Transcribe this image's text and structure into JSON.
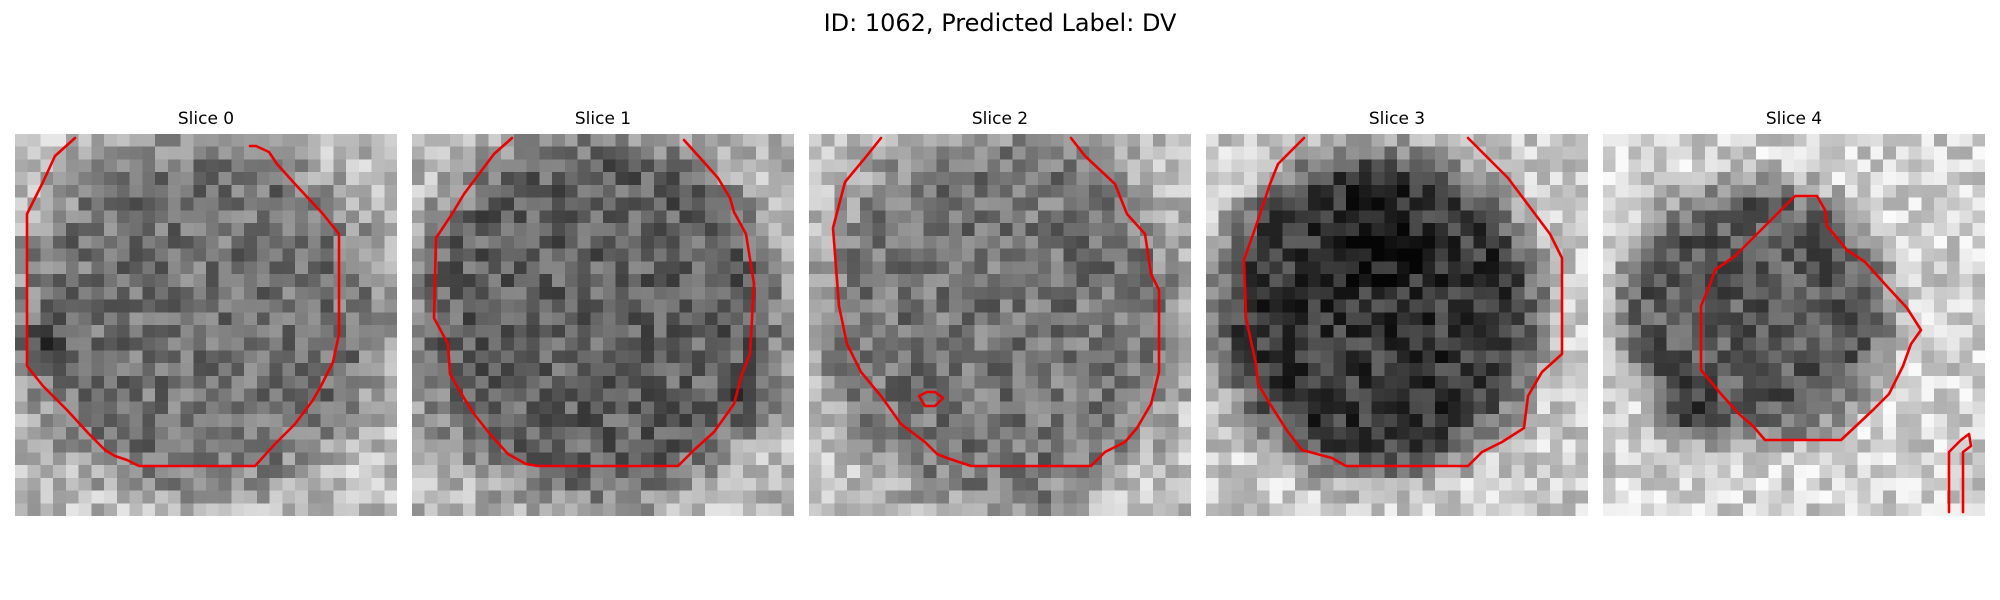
{
  "figure": {
    "title": "ID: 1062, Predicted Label: DV",
    "contour_color": "#ee0000",
    "colormap": "gray",
    "slices": [
      {
        "label": "Slice 0"
      },
      {
        "label": "Slice 1"
      },
      {
        "label": "Slice 2"
      },
      {
        "label": "Slice 3"
      },
      {
        "label": "Slice 4"
      }
    ]
  }
}
